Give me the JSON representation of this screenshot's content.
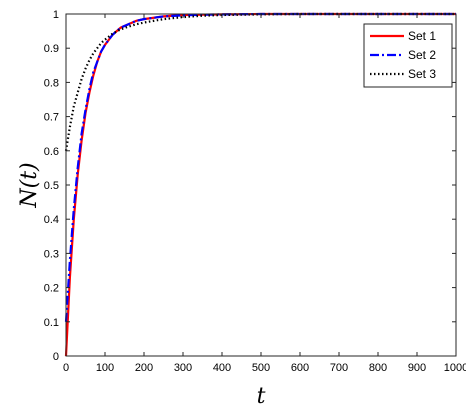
{
  "chart_data": {
    "type": "line",
    "title": "",
    "xlabel": "t",
    "ylabel": "N(t)",
    "xlim": [
      0,
      1000
    ],
    "ylim": [
      0,
      1
    ],
    "xticks": [
      0,
      100,
      200,
      300,
      400,
      500,
      600,
      700,
      800,
      900,
      1000
    ],
    "yticks": [
      0,
      0.1,
      0.2,
      0.3,
      0.4,
      0.5,
      0.6,
      0.7,
      0.8,
      0.9,
      1
    ],
    "grid": false,
    "legend_position": "top-right",
    "x": [
      0,
      10,
      20,
      30,
      40,
      50,
      60,
      70,
      80,
      90,
      100,
      120,
      140,
      160,
      180,
      200,
      250,
      300,
      350,
      400,
      500,
      600,
      700,
      800,
      900,
      1000
    ],
    "series": [
      {
        "name": "Set 1",
        "color": "#ff0000",
        "style": "solid",
        "values": [
          0.0,
          0.23,
          0.4,
          0.53,
          0.63,
          0.71,
          0.77,
          0.82,
          0.86,
          0.89,
          0.91,
          0.94,
          0.96,
          0.97,
          0.98,
          0.985,
          0.993,
          0.997,
          0.998,
          0.999,
          1.0,
          1.0,
          1.0,
          1.0,
          1.0,
          1.0
        ]
      },
      {
        "name": "Set 2",
        "color": "#0000ff",
        "style": "dashdot",
        "values": [
          0.1,
          0.28,
          0.43,
          0.55,
          0.65,
          0.72,
          0.78,
          0.83,
          0.86,
          0.89,
          0.91,
          0.94,
          0.96,
          0.97,
          0.98,
          0.985,
          0.993,
          0.996,
          0.998,
          0.999,
          1.0,
          1.0,
          1.0,
          1.0,
          1.0,
          1.0
        ]
      },
      {
        "name": "Set 3",
        "color": "#000000",
        "style": "dotted",
        "values": [
          0.6,
          0.67,
          0.73,
          0.77,
          0.81,
          0.84,
          0.865,
          0.885,
          0.9,
          0.915,
          0.925,
          0.943,
          0.955,
          0.963,
          0.97,
          0.975,
          0.985,
          0.991,
          0.995,
          0.997,
          0.999,
          1.0,
          1.0,
          1.0,
          1.0,
          1.0
        ]
      }
    ]
  }
}
